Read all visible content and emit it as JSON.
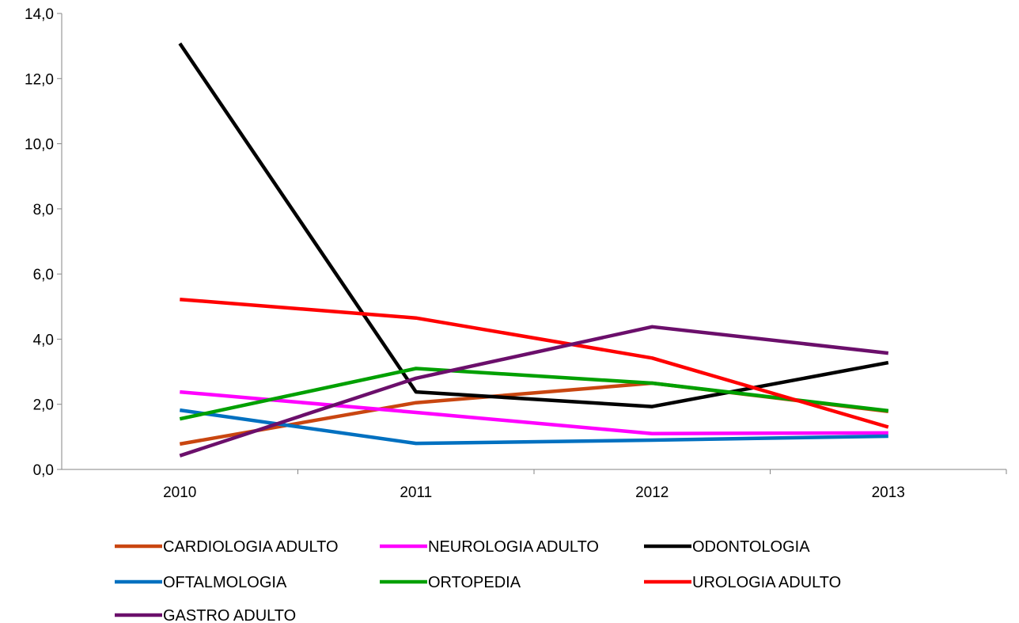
{
  "chart_data": {
    "type": "line",
    "title": "",
    "xlabel": "",
    "ylabel": "",
    "categories": [
      "2010",
      "2011",
      "2012",
      "2013"
    ],
    "ylim": [
      0,
      14
    ],
    "ytick_labels": [
      "0,0",
      "2,0",
      "4,0",
      "6,0",
      "8,0",
      "10,0",
      "12,0",
      "14,0"
    ],
    "grid": false,
    "legend_position": "bottom",
    "series": [
      {
        "name": "CARDIOLOGIA ADULTO",
        "color": "#c94610",
        "values": [
          0.78,
          2.05,
          2.65,
          1.78
        ]
      },
      {
        "name": "NEUROLOGIA ADULTO",
        "color": "#ff00ff",
        "values": [
          2.38,
          1.75,
          1.1,
          1.12
        ]
      },
      {
        "name": "ODONTOLOGIA",
        "color": "#000000",
        "values": [
          13.08,
          2.38,
          1.93,
          3.28
        ]
      },
      {
        "name": "OFTALMOLOGIA",
        "color": "#0070c0",
        "values": [
          1.82,
          0.8,
          0.9,
          1.02
        ]
      },
      {
        "name": "ORTOPEDIA",
        "color": "#00a000",
        "values": [
          1.55,
          3.1,
          2.65,
          1.8
        ]
      },
      {
        "name": "UROLOGIA ADULTO",
        "color": "#ff0000",
        "values": [
          5.22,
          4.65,
          3.42,
          1.3
        ]
      },
      {
        "name": "GASTRO ADULTO",
        "color": "#6b0f6b",
        "values": [
          0.42,
          2.8,
          4.38,
          3.57
        ]
      }
    ]
  }
}
